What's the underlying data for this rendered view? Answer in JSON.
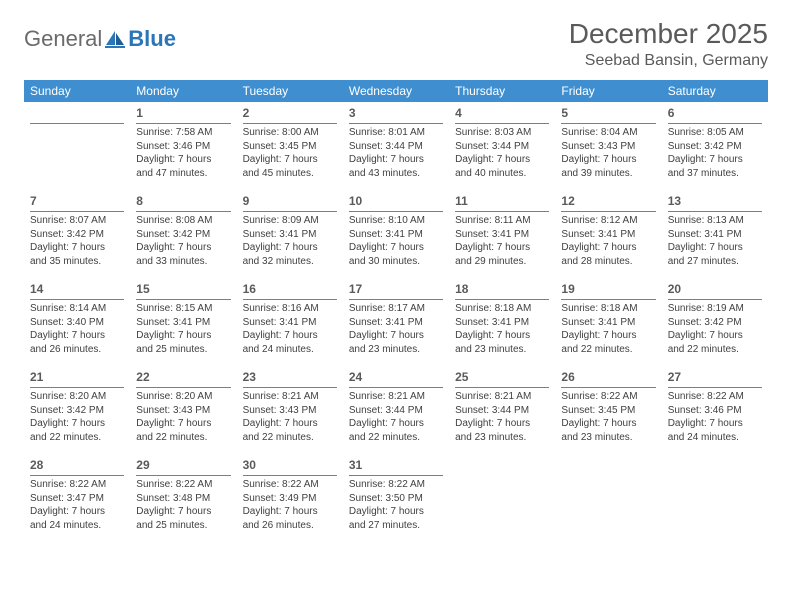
{
  "logo": {
    "word1": "General",
    "word2": "Blue"
  },
  "title": "December 2025",
  "location": "Seebad Bansin, Germany",
  "colors": {
    "header_bg": "#3f8fd0",
    "header_text": "#ffffff",
    "rule": "#3f8fd0",
    "body_text": "#414141",
    "title_text": "#5a5a5a",
    "logo_gray": "#6b6b6b",
    "logo_blue": "#2a76b8"
  },
  "weekdays": [
    "Sunday",
    "Monday",
    "Tuesday",
    "Wednesday",
    "Thursday",
    "Friday",
    "Saturday"
  ],
  "first_weekday_index": 1,
  "days": [
    {
      "n": 1,
      "sr": "7:58 AM",
      "ss": "3:46 PM",
      "dl": "7 hours and 47 minutes."
    },
    {
      "n": 2,
      "sr": "8:00 AM",
      "ss": "3:45 PM",
      "dl": "7 hours and 45 minutes."
    },
    {
      "n": 3,
      "sr": "8:01 AM",
      "ss": "3:44 PM",
      "dl": "7 hours and 43 minutes."
    },
    {
      "n": 4,
      "sr": "8:03 AM",
      "ss": "3:44 PM",
      "dl": "7 hours and 40 minutes."
    },
    {
      "n": 5,
      "sr": "8:04 AM",
      "ss": "3:43 PM",
      "dl": "7 hours and 39 minutes."
    },
    {
      "n": 6,
      "sr": "8:05 AM",
      "ss": "3:42 PM",
      "dl": "7 hours and 37 minutes."
    },
    {
      "n": 7,
      "sr": "8:07 AM",
      "ss": "3:42 PM",
      "dl": "7 hours and 35 minutes."
    },
    {
      "n": 8,
      "sr": "8:08 AM",
      "ss": "3:42 PM",
      "dl": "7 hours and 33 minutes."
    },
    {
      "n": 9,
      "sr": "8:09 AM",
      "ss": "3:41 PM",
      "dl": "7 hours and 32 minutes."
    },
    {
      "n": 10,
      "sr": "8:10 AM",
      "ss": "3:41 PM",
      "dl": "7 hours and 30 minutes."
    },
    {
      "n": 11,
      "sr": "8:11 AM",
      "ss": "3:41 PM",
      "dl": "7 hours and 29 minutes."
    },
    {
      "n": 12,
      "sr": "8:12 AM",
      "ss": "3:41 PM",
      "dl": "7 hours and 28 minutes."
    },
    {
      "n": 13,
      "sr": "8:13 AM",
      "ss": "3:41 PM",
      "dl": "7 hours and 27 minutes."
    },
    {
      "n": 14,
      "sr": "8:14 AM",
      "ss": "3:40 PM",
      "dl": "7 hours and 26 minutes."
    },
    {
      "n": 15,
      "sr": "8:15 AM",
      "ss": "3:41 PM",
      "dl": "7 hours and 25 minutes."
    },
    {
      "n": 16,
      "sr": "8:16 AM",
      "ss": "3:41 PM",
      "dl": "7 hours and 24 minutes."
    },
    {
      "n": 17,
      "sr": "8:17 AM",
      "ss": "3:41 PM",
      "dl": "7 hours and 23 minutes."
    },
    {
      "n": 18,
      "sr": "8:18 AM",
      "ss": "3:41 PM",
      "dl": "7 hours and 23 minutes."
    },
    {
      "n": 19,
      "sr": "8:18 AM",
      "ss": "3:41 PM",
      "dl": "7 hours and 22 minutes."
    },
    {
      "n": 20,
      "sr": "8:19 AM",
      "ss": "3:42 PM",
      "dl": "7 hours and 22 minutes."
    },
    {
      "n": 21,
      "sr": "8:20 AM",
      "ss": "3:42 PM",
      "dl": "7 hours and 22 minutes."
    },
    {
      "n": 22,
      "sr": "8:20 AM",
      "ss": "3:43 PM",
      "dl": "7 hours and 22 minutes."
    },
    {
      "n": 23,
      "sr": "8:21 AM",
      "ss": "3:43 PM",
      "dl": "7 hours and 22 minutes."
    },
    {
      "n": 24,
      "sr": "8:21 AM",
      "ss": "3:44 PM",
      "dl": "7 hours and 22 minutes."
    },
    {
      "n": 25,
      "sr": "8:21 AM",
      "ss": "3:44 PM",
      "dl": "7 hours and 23 minutes."
    },
    {
      "n": 26,
      "sr": "8:22 AM",
      "ss": "3:45 PM",
      "dl": "7 hours and 23 minutes."
    },
    {
      "n": 27,
      "sr": "8:22 AM",
      "ss": "3:46 PM",
      "dl": "7 hours and 24 minutes."
    },
    {
      "n": 28,
      "sr": "8:22 AM",
      "ss": "3:47 PM",
      "dl": "7 hours and 24 minutes."
    },
    {
      "n": 29,
      "sr": "8:22 AM",
      "ss": "3:48 PM",
      "dl": "7 hours and 25 minutes."
    },
    {
      "n": 30,
      "sr": "8:22 AM",
      "ss": "3:49 PM",
      "dl": "7 hours and 26 minutes."
    },
    {
      "n": 31,
      "sr": "8:22 AM",
      "ss": "3:50 PM",
      "dl": "7 hours and 27 minutes."
    }
  ],
  "labels": {
    "sunrise": "Sunrise:",
    "sunset": "Sunset:",
    "daylight": "Daylight:"
  }
}
